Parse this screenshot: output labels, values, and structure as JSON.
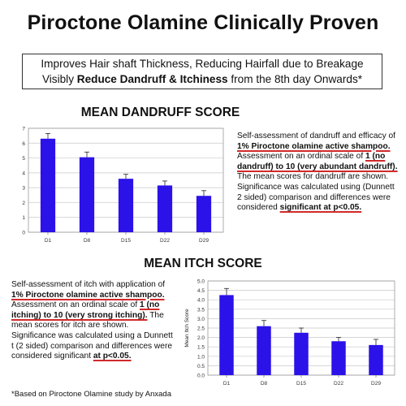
{
  "title": "Piroctone Olamine Clinically Proven",
  "claim": {
    "line1": "Improves Hair shaft Thickness, Reducing Hairfall due to Breakage",
    "line2_pre": "Visibly ",
    "line2_bold": "Reduce Dandruff & Itchiness",
    "line2_post": " from the 8th day Onwards*"
  },
  "dandruff_desc": {
    "p1": "Self-assessment of dandruff and efficacy of ",
    "u1": "1% Piroctone olamine active shampoo.",
    "p2": " Assessment on an ordinal scale of ",
    "u2": "1 (no dandruff) to 10 (very abundant dandruff).",
    "p3": " The mean scores for dandruff are shown. Significance was calculated using (Dunnett 2 sided) comparison and differences were considered ",
    "u3": "significant at p<0.05."
  },
  "itch_desc": {
    "p1": "Self-assessment of itch with application of ",
    "u1": "1% Piroctone olamine active shampoo.",
    "p2": " Assessment on an ordinal scale of ",
    "u2": "1 (no itching) to 10 (very strong itching).",
    "p3": " The mean scores for itch are shown. Significance was calculated using a Dunnett t (2 sided) comparison and differences were considered significant ",
    "u3": "at p<0.05."
  },
  "footnote": "*Based on Piroctone Olamine study by Anxada",
  "colors": {
    "bar": "#2b12e8",
    "grid": "#c8c8c8",
    "underline": "#d12a2a"
  },
  "chart_data": [
    {
      "type": "bar",
      "title": "MEAN DANDRUFF SCORE",
      "ylabel": "",
      "categories": [
        "D1",
        "D8",
        "D15",
        "D22",
        "D29"
      ],
      "values": [
        6.3,
        5.05,
        3.6,
        3.15,
        2.45
      ],
      "errors": [
        0.35,
        0.35,
        0.3,
        0.3,
        0.35
      ],
      "ylim": [
        0,
        7
      ],
      "yticks": [
        0,
        1,
        2,
        3,
        4,
        5,
        6,
        7
      ],
      "ytick_labels": [
        "0",
        "1",
        "2",
        "3",
        "4",
        "5",
        "6",
        "7"
      ],
      "grid": true
    },
    {
      "type": "bar",
      "title": "MEAN ITCH SCORE",
      "ylabel": "Mean Itch Score",
      "categories": [
        "D1",
        "D8",
        "D15",
        "D22",
        "D29"
      ],
      "values": [
        4.25,
        2.6,
        2.25,
        1.8,
        1.6
      ],
      "errors": [
        0.35,
        0.3,
        0.25,
        0.2,
        0.3
      ],
      "ylim": [
        0,
        5
      ],
      "yticks": [
        0,
        0.5,
        1,
        1.5,
        2,
        2.5,
        3,
        3.5,
        4,
        4.5,
        5
      ],
      "ytick_labels": [
        "0.0",
        "0.5",
        "1.0",
        "1.5",
        "2.0",
        "2.5",
        "3.0",
        "3.5",
        "4.0",
        "4.5",
        "5.0"
      ],
      "grid": true
    }
  ]
}
